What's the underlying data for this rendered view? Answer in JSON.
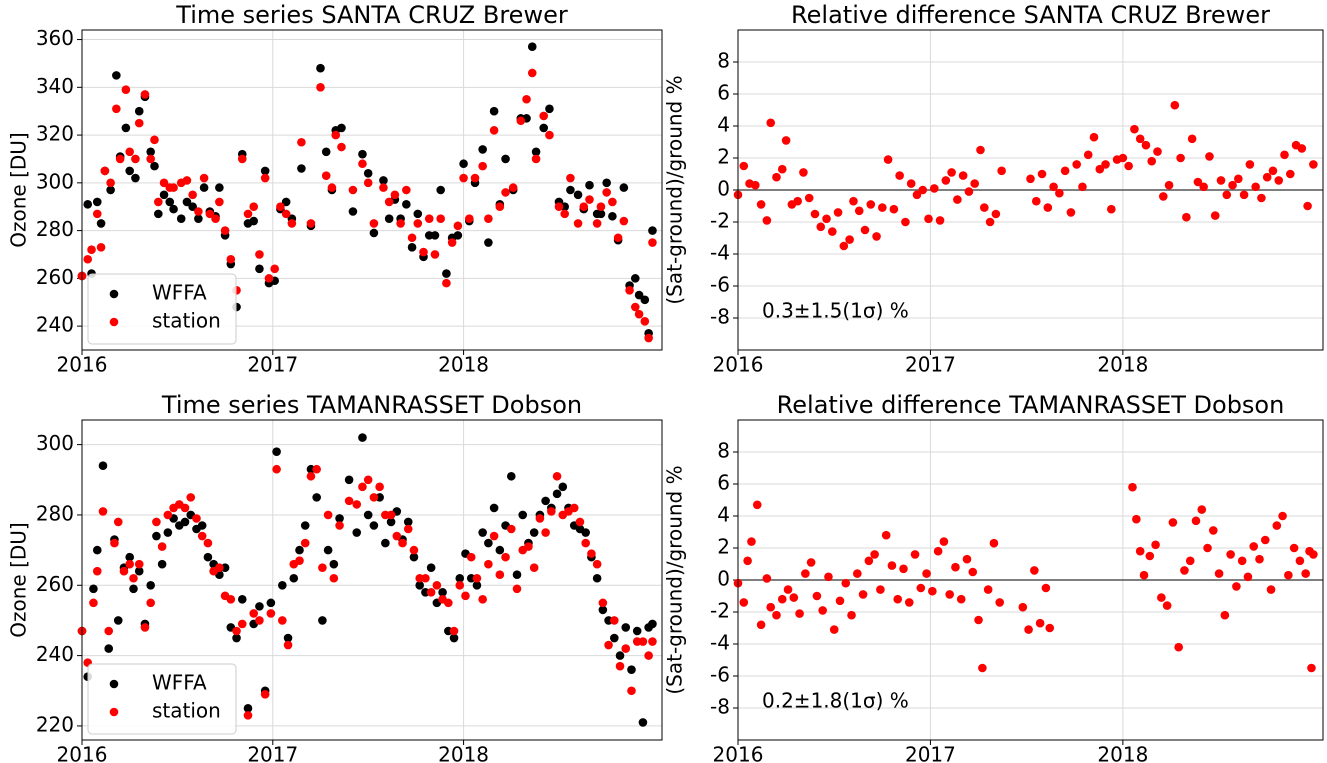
{
  "chart_data": [
    {
      "type": "scatter",
      "title": "Time series SANTA CRUZ Brewer",
      "ylabel": "Ozone [DU]",
      "x": [
        2016.0,
        2016.03,
        2016.05,
        2016.08,
        2016.1,
        2016.12,
        2016.15,
        2016.18,
        2016.2,
        2016.23,
        2016.25,
        2016.28,
        2016.3,
        2016.33,
        2016.36,
        2016.38,
        2016.4,
        2016.43,
        2016.46,
        2016.48,
        2016.52,
        2016.55,
        2016.58,
        2016.61,
        2016.64,
        2016.67,
        2016.7,
        2016.72,
        2016.75,
        2016.78,
        2016.81,
        2016.84,
        2016.87,
        2016.9,
        2016.93,
        2016.96,
        2016.98,
        2017.01,
        2017.04,
        2017.07,
        2017.1,
        2017.15,
        2017.2,
        2017.25,
        2017.28,
        2017.31,
        2017.33,
        2017.36,
        2017.42,
        2017.47,
        2017.5,
        2017.53,
        2017.58,
        2017.61,
        2017.64,
        2017.67,
        2017.7,
        2017.73,
        2017.76,
        2017.79,
        2017.82,
        2017.85,
        2017.88,
        2017.91,
        2017.94,
        2017.97,
        2018.0,
        2018.03,
        2018.06,
        2018.1,
        2018.13,
        2018.16,
        2018.19,
        2018.22,
        2018.26,
        2018.3,
        2018.33,
        2018.36,
        2018.38,
        2018.42,
        2018.45,
        2018.5,
        2018.53,
        2018.56,
        2018.6,
        2018.63,
        2018.66,
        2018.7,
        2018.72,
        2018.75,
        2018.78,
        2018.81,
        2018.84,
        2018.87,
        2018.9,
        2018.92,
        2018.95,
        2018.97,
        2018.99
      ],
      "series": [
        {
          "name": "WFFA",
          "color": "#000000",
          "values": [
            261,
            291,
            262,
            292,
            283,
            305,
            297,
            345,
            311,
            323,
            305,
            302,
            330,
            336,
            313,
            307,
            287,
            295,
            292,
            289,
            285,
            292,
            290,
            285,
            298,
            288,
            286,
            298,
            278,
            266,
            248,
            312,
            283,
            284,
            264,
            305,
            258,
            259,
            289,
            292,
            285,
            306,
            282,
            348,
            313,
            297,
            322,
            323,
            288,
            312,
            304,
            279,
            301,
            285,
            293,
            285,
            291,
            273,
            287,
            269,
            278,
            278,
            297,
            262,
            277,
            278,
            308,
            284,
            300,
            314,
            275,
            330,
            291,
            310,
            297,
            327,
            327,
            357,
            313,
            323,
            331,
            292,
            290,
            297,
            295,
            289,
            299,
            287,
            287,
            300,
            286,
            276,
            298,
            257,
            260,
            253,
            251,
            237,
            280
          ]
        },
        {
          "name": "station",
          "color": "#ff0000",
          "values": [
            261,
            268,
            272,
            287,
            273,
            305,
            300,
            331,
            310,
            339,
            313,
            310,
            325,
            337,
            310,
            318,
            292,
            300,
            298,
            298,
            300,
            301,
            295,
            288,
            302,
            287,
            285,
            292,
            280,
            268,
            255,
            310,
            287,
            290,
            270,
            302,
            260,
            264,
            290,
            287,
            283,
            317,
            283,
            340,
            303,
            298,
            320,
            315,
            297,
            308,
            300,
            283,
            298,
            292,
            295,
            283,
            297,
            277,
            283,
            271,
            285,
            270,
            285,
            258,
            275,
            282,
            302,
            285,
            302,
            307,
            285,
            322,
            290,
            296,
            298,
            326,
            335,
            346,
            310,
            328,
            320,
            290,
            287,
            302,
            283,
            290,
            293,
            283,
            290,
            296,
            292,
            277,
            284,
            255,
            248,
            245,
            242,
            235,
            275
          ]
        }
      ],
      "xlim": [
        2016,
        2019.04
      ],
      "xticks": [
        2016,
        2017,
        2018
      ],
      "ylim": [
        230,
        364
      ],
      "yticks": [
        240,
        260,
        280,
        300,
        320,
        340,
        360
      ],
      "grid": true,
      "legend": "lower left"
    },
    {
      "type": "scatter",
      "title": "Relative difference SANTA CRUZ Brewer",
      "ylabel": "(Sat-ground)/ground %",
      "x": [
        2016.0,
        2016.03,
        2016.06,
        2016.09,
        2016.12,
        2016.15,
        2016.17,
        2016.2,
        2016.23,
        2016.25,
        2016.28,
        2016.31,
        2016.34,
        2016.37,
        2016.4,
        2016.43,
        2016.46,
        2016.49,
        2016.52,
        2016.55,
        2016.58,
        2016.6,
        2016.63,
        2016.66,
        2016.69,
        2016.72,
        2016.75,
        2016.78,
        2016.81,
        2016.84,
        2016.87,
        2016.9,
        2016.93,
        2016.96,
        2016.99,
        2017.02,
        2017.05,
        2017.08,
        2017.11,
        2017.14,
        2017.17,
        2017.2,
        2017.23,
        2017.26,
        2017.28,
        2017.31,
        2017.34,
        2017.37,
        2017.52,
        2017.55,
        2017.58,
        2017.61,
        2017.64,
        2017.67,
        2017.7,
        2017.73,
        2017.76,
        2017.79,
        2017.82,
        2017.85,
        2017.88,
        2017.91,
        2017.94,
        2017.97,
        2018.0,
        2018.03,
        2018.06,
        2018.09,
        2018.12,
        2018.15,
        2018.18,
        2018.21,
        2018.24,
        2018.27,
        2018.3,
        2018.33,
        2018.36,
        2018.39,
        2018.42,
        2018.45,
        2018.48,
        2018.51,
        2018.54,
        2018.57,
        2018.6,
        2018.63,
        2018.66,
        2018.69,
        2018.72,
        2018.75,
        2018.78,
        2018.81,
        2018.84,
        2018.87,
        2018.9,
        2018.93,
        2018.96,
        2018.99
      ],
      "values": [
        -0.3,
        1.5,
        0.4,
        0.3,
        -0.9,
        -1.9,
        4.2,
        0.8,
        1.3,
        3.1,
        -0.9,
        -0.7,
        1.1,
        -0.5,
        -1.5,
        -2.3,
        -1.8,
        -2.6,
        -1.4,
        -3.5,
        -3.1,
        -0.7,
        -1.3,
        -2.5,
        -0.9,
        -2.9,
        -1.1,
        1.9,
        -1.2,
        0.9,
        -2.0,
        0.4,
        -0.3,
        0.0,
        -1.8,
        0.1,
        -1.9,
        0.6,
        1.1,
        -0.6,
        0.9,
        -0.1,
        0.4,
        2.5,
        -1.1,
        -2.0,
        -1.5,
        1.2,
        0.7,
        -0.7,
        1.0,
        -1.1,
        0.2,
        -0.2,
        1.2,
        -1.4,
        1.6,
        0.2,
        2.2,
        3.3,
        1.3,
        1.6,
        -1.2,
        1.9,
        2.0,
        1.5,
        3.8,
        3.2,
        2.8,
        1.8,
        2.4,
        -0.4,
        0.3,
        5.3,
        2.0,
        -1.7,
        3.2,
        0.5,
        0.2,
        2.1,
        -1.6,
        0.6,
        -0.3,
        0.3,
        0.7,
        -0.3,
        1.6,
        0.2,
        -0.5,
        0.8,
        1.2,
        0.6,
        2.2,
        1.0,
        2.8,
        2.6,
        -1.0,
        1.6
      ],
      "color": "#ff0000",
      "hline": 0,
      "annotation": "0.3±1.5(1σ) %",
      "xlim": [
        2016,
        2019.04
      ],
      "xticks": [
        2016,
        2017,
        2018
      ],
      "ylim": [
        -10,
        10
      ],
      "yticks": [
        -8,
        -6,
        -4,
        -2,
        0,
        2,
        4,
        6,
        8
      ],
      "grid": true
    },
    {
      "type": "scatter",
      "title": "Time series TAMANRASSET Dobson",
      "ylabel": "Ozone [DU]",
      "x": [
        2016.0,
        2016.03,
        2016.06,
        2016.08,
        2016.11,
        2016.14,
        2016.17,
        2016.19,
        2016.22,
        2016.25,
        2016.27,
        2016.3,
        2016.33,
        2016.36,
        2016.39,
        2016.42,
        2016.45,
        2016.48,
        2016.51,
        2016.54,
        2016.57,
        2016.6,
        2016.63,
        2016.66,
        2016.69,
        2016.72,
        2016.75,
        2016.78,
        2016.81,
        2016.84,
        2016.87,
        2016.9,
        2016.93,
        2016.96,
        2016.99,
        2017.02,
        2017.05,
        2017.08,
        2017.11,
        2017.14,
        2017.17,
        2017.2,
        2017.23,
        2017.26,
        2017.29,
        2017.32,
        2017.35,
        2017.4,
        2017.44,
        2017.47,
        2017.5,
        2017.53,
        2017.56,
        2017.59,
        2017.62,
        2017.65,
        2017.68,
        2017.71,
        2017.74,
        2017.77,
        2017.8,
        2017.83,
        2017.86,
        2017.89,
        2017.92,
        2017.95,
        2017.98,
        2018.01,
        2018.04,
        2018.07,
        2018.1,
        2018.13,
        2018.16,
        2018.19,
        2018.22,
        2018.25,
        2018.28,
        2018.31,
        2018.34,
        2018.37,
        2018.4,
        2018.43,
        2018.46,
        2018.49,
        2018.52,
        2018.55,
        2018.58,
        2018.61,
        2018.64,
        2018.67,
        2018.7,
        2018.73,
        2018.76,
        2018.79,
        2018.82,
        2018.85,
        2018.88,
        2018.91,
        2018.94,
        2018.97,
        2018.99
      ],
      "series": [
        {
          "name": "WFFA",
          "color": "#000000",
          "values": [
            247,
            234,
            259,
            270,
            294,
            242,
            273,
            250,
            265,
            268,
            259,
            264,
            249,
            260,
            274,
            266,
            275,
            279,
            277,
            278,
            280,
            276,
            277,
            268,
            266,
            263,
            265,
            248,
            245,
            256,
            225,
            249,
            254,
            230,
            255,
            298,
            260,
            245,
            262,
            270,
            277,
            293,
            285,
            250,
            270,
            266,
            279,
            290,
            275,
            302,
            280,
            277,
            285,
            272,
            278,
            281,
            273,
            278,
            268,
            260,
            258,
            265,
            255,
            258,
            247,
            245,
            262,
            269,
            262,
            260,
            275,
            272,
            282,
            270,
            277,
            291,
            263,
            280,
            272,
            275,
            280,
            284,
            282,
            286,
            288,
            282,
            277,
            276,
            275,
            268,
            262,
            253,
            250,
            245,
            240,
            248,
            236,
            247,
            221,
            248,
            249
          ]
        },
        {
          "name": "station",
          "color": "#ff0000",
          "values": [
            247,
            238,
            255,
            264,
            281,
            247,
            272,
            278,
            264,
            266,
            262,
            266,
            248,
            255,
            278,
            271,
            280,
            282,
            283,
            282,
            285,
            279,
            274,
            272,
            264,
            265,
            257,
            256,
            247,
            249,
            223,
            252,
            250,
            229,
            252,
            293,
            250,
            243,
            266,
            267,
            272,
            291,
            293,
            265,
            280,
            262,
            277,
            284,
            283,
            288,
            290,
            285,
            288,
            280,
            280,
            274,
            272,
            276,
            270,
            262,
            262,
            258,
            260,
            256,
            255,
            247,
            260,
            257,
            268,
            262,
            256,
            266,
            274,
            263,
            268,
            276,
            259,
            270,
            271,
            265,
            279,
            275,
            281,
            291,
            280,
            281,
            282,
            278,
            272,
            269,
            266,
            255,
            243,
            250,
            237,
            242,
            230,
            244,
            244,
            240,
            244
          ]
        }
      ],
      "xlim": [
        2016,
        2019.04
      ],
      "xticks": [
        2016,
        2017,
        2018
      ],
      "ylim": [
        216,
        307
      ],
      "yticks": [
        220,
        240,
        260,
        280,
        300
      ],
      "grid": true,
      "legend": "lower left"
    },
    {
      "type": "scatter",
      "title": "Relative difference TAMANRASSET Dobson",
      "ylabel": "(Sat-ground)/ground %",
      "x": [
        2016.0,
        2016.03,
        2016.05,
        2016.07,
        2016.1,
        2016.12,
        2016.15,
        2016.17,
        2016.2,
        2016.23,
        2016.26,
        2016.29,
        2016.32,
        2016.35,
        2016.38,
        2016.41,
        2016.44,
        2016.47,
        2016.5,
        2016.53,
        2016.56,
        2016.59,
        2016.62,
        2016.65,
        2016.68,
        2016.71,
        2016.74,
        2016.77,
        2016.8,
        2016.83,
        2016.86,
        2016.89,
        2016.92,
        2016.95,
        2016.98,
        2017.01,
        2017.04,
        2017.07,
        2017.1,
        2017.13,
        2017.16,
        2017.19,
        2017.22,
        2017.25,
        2017.27,
        2017.3,
        2017.33,
        2017.36,
        2017.48,
        2017.51,
        2017.54,
        2017.57,
        2017.6,
        2017.62,
        2018.05,
        2018.07,
        2018.09,
        2018.11,
        2018.14,
        2018.17,
        2018.2,
        2018.23,
        2018.26,
        2018.29,
        2018.32,
        2018.35,
        2018.38,
        2018.41,
        2018.44,
        2018.47,
        2018.5,
        2018.53,
        2018.56,
        2018.59,
        2018.62,
        2018.65,
        2018.68,
        2018.71,
        2018.74,
        2018.77,
        2018.8,
        2018.83,
        2018.86,
        2018.89,
        2018.92,
        2018.95,
        2018.97,
        2018.98,
        2018.99
      ],
      "values": [
        -0.2,
        -1.4,
        1.2,
        2.4,
        4.7,
        -2.8,
        0.1,
        -1.7,
        -2.2,
        -1.2,
        -0.6,
        -1.1,
        -2.1,
        0.4,
        1.1,
        -1.0,
        -1.9,
        0.2,
        -3.1,
        -1.3,
        -0.2,
        -2.2,
        0.4,
        -0.9,
        1.2,
        1.6,
        -0.6,
        2.8,
        0.9,
        -1.2,
        0.7,
        -1.4,
        1.6,
        -0.5,
        0.4,
        -0.7,
        1.8,
        2.4,
        -0.9,
        0.8,
        -1.2,
        1.3,
        0.5,
        -2.5,
        -5.5,
        -0.6,
        2.3,
        -1.4,
        -1.7,
        -3.1,
        0.6,
        -2.7,
        -0.5,
        -3.0,
        5.8,
        3.8,
        1.8,
        0.3,
        1.5,
        2.2,
        -1.1,
        -1.6,
        3.6,
        -4.2,
        0.6,
        1.2,
        3.7,
        4.4,
        2.0,
        3.1,
        0.4,
        -2.2,
        1.6,
        -0.4,
        1.2,
        0.2,
        2.1,
        1.3,
        2.5,
        -0.6,
        3.4,
        4.0,
        0.3,
        2.0,
        1.2,
        0.4,
        1.8,
        -5.5,
        1.6
      ],
      "color": "#ff0000",
      "hline": 0,
      "annotation": "0.2±1.8(1σ) %",
      "xlim": [
        2016,
        2019.04
      ],
      "xticks": [
        2016,
        2017,
        2018
      ],
      "ylim": [
        -10,
        10
      ],
      "yticks": [
        -8,
        -6,
        -4,
        -2,
        0,
        2,
        4,
        6,
        8
      ],
      "grid": true
    }
  ]
}
